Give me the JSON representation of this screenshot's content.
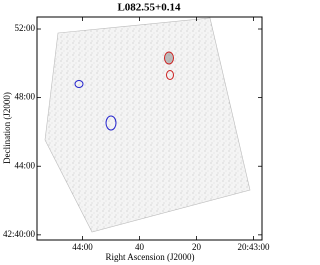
{
  "chart_data": {
    "type": "image",
    "title": "L082.55+0.14",
    "xlabel": "Right Ascension (J2000)",
    "ylabel": "Declination (J2000)",
    "xlim": [
      76,
      -3
    ],
    "ylim": [
      39.7,
      52.7
    ],
    "xticks": [
      {
        "value": 60,
        "label": "44:00"
      },
      {
        "value": 40,
        "label": "40"
      },
      {
        "value": 20,
        "label": "20"
      },
      {
        "value": 0,
        "label": "20:43:00"
      }
    ],
    "yticks": [
      {
        "value": 40,
        "label": "42:40:00"
      },
      {
        "value": 44,
        "label": "44:00"
      },
      {
        "value": 48,
        "label": "48:00"
      },
      {
        "value": 52,
        "label": "52:00"
      }
    ]
  }
}
